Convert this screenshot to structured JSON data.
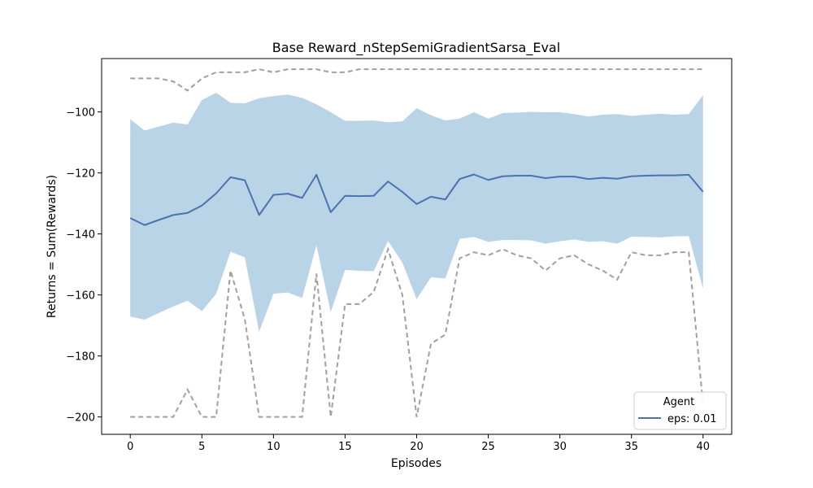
{
  "chart_data": {
    "type": "line",
    "title": "Base Reward_nStepSemiGradientSarsa_Eval",
    "xlabel": "Episodes",
    "ylabel": "Returns = Sum(Rewards)",
    "xlim": [
      -2,
      42
    ],
    "ylim": [
      -205.7,
      -82.5
    ],
    "xticks": [
      0,
      5,
      10,
      15,
      20,
      25,
      30,
      35,
      40
    ],
    "yticks": [
      -200,
      -180,
      -160,
      -140,
      -120,
      -100
    ],
    "x": [
      0,
      1,
      2,
      3,
      4,
      5,
      6,
      7,
      8,
      9,
      10,
      11,
      12,
      13,
      14,
      15,
      16,
      17,
      18,
      19,
      20,
      21,
      22,
      23,
      24,
      25,
      26,
      27,
      28,
      29,
      30,
      31,
      32,
      33,
      34,
      35,
      36,
      37,
      38,
      39,
      40
    ],
    "series": [
      {
        "name": "eps: 0.01",
        "color": "#4c72b0",
        "values": [
          -134.8,
          -137.1,
          -135.4,
          -133.8,
          -133.1,
          -130.7,
          -126.7,
          -121.4,
          -122.4,
          -133.8,
          -127.2,
          -126.8,
          -128.2,
          -120.6,
          -132.9,
          -127.5,
          -127.6,
          -127.5,
          -122.8,
          -126.2,
          -130.2,
          -127.8,
          -128.7,
          -122.0,
          -120.5,
          -122.3,
          -121.1,
          -120.9,
          -120.9,
          -121.7,
          -121.2,
          -121.2,
          -122.0,
          -121.6,
          -121.9,
          -121.1,
          -120.9,
          -120.8,
          -120.8,
          -120.6,
          -126.2
        ],
        "band_upper": [
          -102.4,
          -106.1,
          -104.8,
          -103.5,
          -104.1,
          -96.1,
          -93.7,
          -97.0,
          -97.2,
          -95.5,
          -94.8,
          -94.3,
          -95.4,
          -97.5,
          -100.1,
          -102.9,
          -102.9,
          -102.8,
          -103.4,
          -103.1,
          -98.8,
          -101.1,
          -102.8,
          -102.2,
          -100.1,
          -102.2,
          -100.4,
          -100.2,
          -100.0,
          -100.1,
          -100.1,
          -100.7,
          -101.5,
          -100.9,
          -100.7,
          -101.3,
          -100.9,
          -100.6,
          -100.9,
          -100.7,
          -94.5
        ],
        "band_lower": [
          -167.1,
          -168.1,
          -165.9,
          -163.8,
          -161.9,
          -165.3,
          -159.6,
          -145.8,
          -147.7,
          -172.1,
          -159.6,
          -159.2,
          -161.0,
          -143.7,
          -165.6,
          -151.8,
          -152.1,
          -152.2,
          -142.3,
          -149.4,
          -161.4,
          -154.2,
          -154.6,
          -141.6,
          -141.0,
          -142.6,
          -142.0,
          -142.0,
          -142.1,
          -143.2,
          -142.4,
          -141.8,
          -142.6,
          -142.4,
          -143.2,
          -140.9,
          -141.0,
          -141.1,
          -140.8,
          -140.7,
          -157.9
        ],
        "band_color": "#b9d3e7",
        "max_values": [
          -89,
          -89,
          -89,
          -90,
          -93,
          -89,
          -87,
          -87,
          -87,
          -86,
          -87,
          -86,
          -86,
          -86,
          -87,
          -87,
          -86,
          -86,
          -86,
          -86,
          -86,
          -86,
          -86,
          -86,
          -86,
          -86,
          -86,
          -86,
          -86,
          -86,
          -86,
          -86,
          -86,
          -86,
          -86,
          -86,
          -86,
          -86,
          -86,
          -86,
          -86
        ],
        "min_values": [
          -200,
          -200,
          -200,
          -200,
          -191,
          -200,
          -200,
          -152,
          -168,
          -200,
          -200,
          -200,
          -200,
          -153,
          -200,
          -163,
          -163,
          -159,
          -145,
          -160,
          -200,
          -176,
          -173,
          -148,
          -146,
          -147,
          -145,
          -147,
          -148,
          -152,
          -148,
          -147,
          -150,
          -152,
          -155,
          -146,
          -147,
          -147,
          -146,
          -146,
          -196
        ],
        "envelope_color": "#a0a0a0"
      }
    ],
    "legend": {
      "title": "Agent",
      "position": "bottom-right"
    }
  }
}
